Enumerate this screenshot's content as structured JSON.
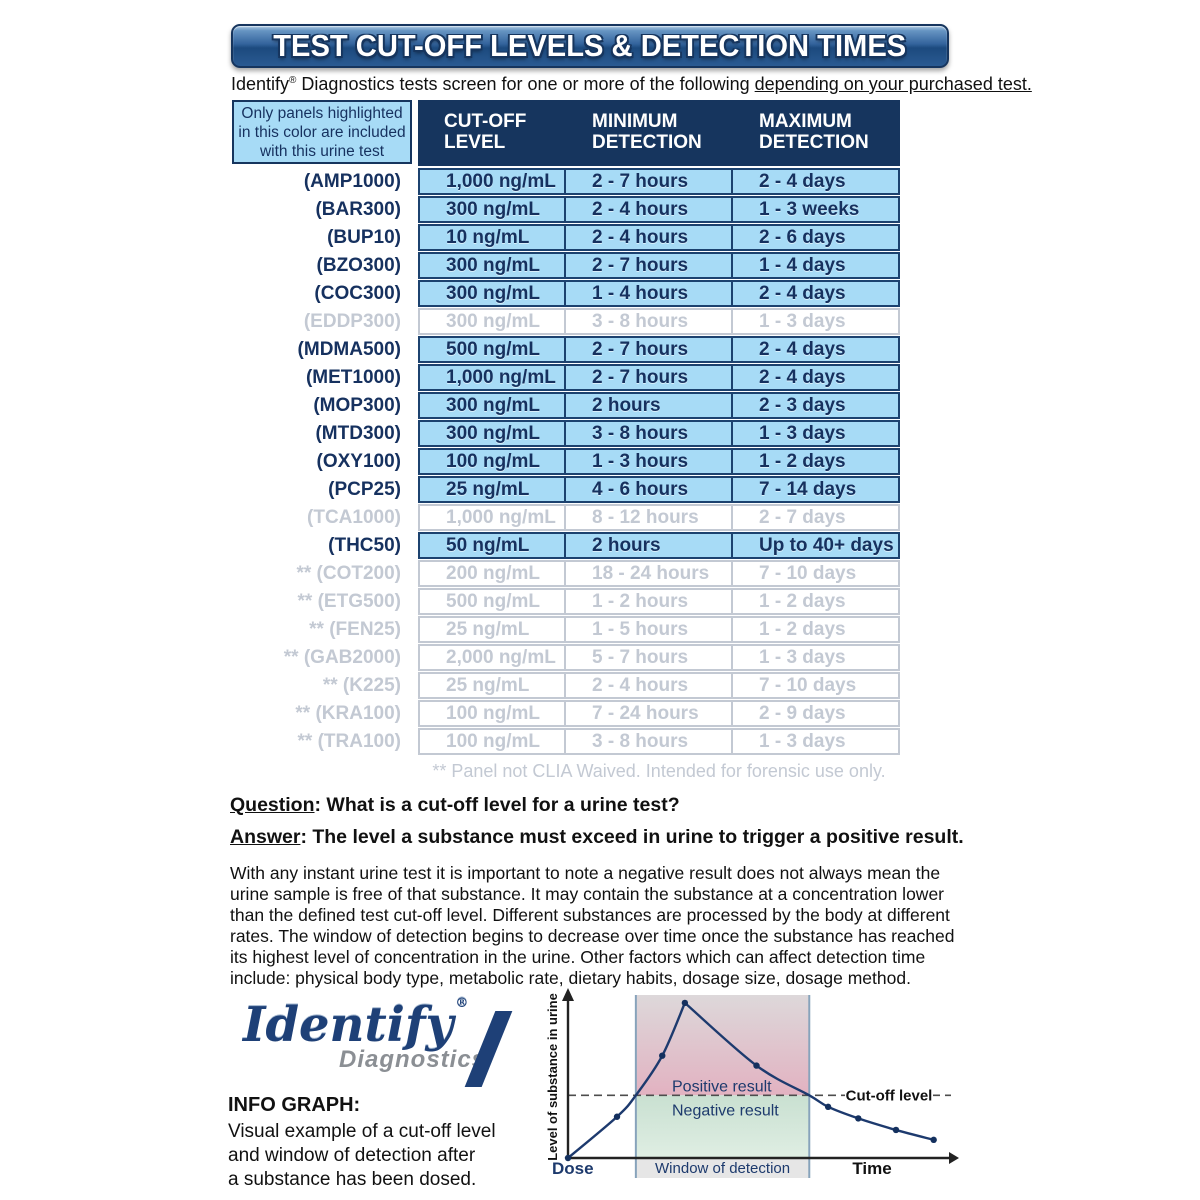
{
  "colors": {
    "navy": "#16355e",
    "row_border": "#1c426f",
    "highlight": "#a7dbf6",
    "faded": "#c3c9d3",
    "text_dark": "#111111",
    "cell_text": "#16315f",
    "logo_navy": "#1e4077",
    "logo_gray": "#8b8f94",
    "chart_curve": "#1d3a6e",
    "chart_label_navy": "#1d3a6d",
    "band_edge": "#87a3bb",
    "positive_top": "#ddd8da",
    "positive_bottom": "#e2b2c1",
    "negative_top": "#c9e0d1",
    "negative_bottom": "#dfeee3",
    "strip_gray": "#e6e6e6",
    "banner_g1": "#a9c6e0",
    "banner_g2": "#6694c2",
    "banner_g3": "#33639c",
    "banner_g4": "#1c4a7e",
    "banner_g5": "#2a5a92"
  },
  "banner": {
    "title": "TEST CUT-OFF LEVELS & DETECTION TIMES"
  },
  "subtitle": {
    "brand": "Identify",
    "reg": "®",
    "rest": " Diagnostics tests screen for one or more of the following ",
    "underlined": "depending on your purchased test."
  },
  "legend_box": {
    "line1": "Only panels highlighted",
    "line2": "in this color are included",
    "line3": "with this urine test"
  },
  "table": {
    "headers": [
      {
        "line1": "CUT-OFF",
        "line2": "LEVEL"
      },
      {
        "line1": "MINIMUM",
        "line2": "DETECTION"
      },
      {
        "line1": "MAXIMUM",
        "line2": "DETECTION"
      }
    ],
    "rows": [
      {
        "prefix": "",
        "panel": "(AMP1000)",
        "cutoff": "1,000 ng/mL",
        "min": "2 - 7 hours",
        "max": "2 - 4 days",
        "state": "active"
      },
      {
        "prefix": "",
        "panel": "(BAR300)",
        "cutoff": "300 ng/mL",
        "min": "2 - 4 hours",
        "max": "1 - 3 weeks",
        "state": "active"
      },
      {
        "prefix": "",
        "panel": "(BUP10)",
        "cutoff": "10 ng/mL",
        "min": "2 - 4 hours",
        "max": "2 - 6 days",
        "state": "active"
      },
      {
        "prefix": "",
        "panel": "(BZO300)",
        "cutoff": "300 ng/mL",
        "min": "2 - 7 hours",
        "max": "1 - 4 days",
        "state": "active"
      },
      {
        "prefix": "",
        "panel": "(COC300)",
        "cutoff": "300 ng/mL",
        "min": "1 - 4 hours",
        "max": "2 - 4 days",
        "state": "active"
      },
      {
        "prefix": "",
        "panel": "(EDDP300)",
        "cutoff": "300 ng/mL",
        "min": "3 - 8 hours",
        "max": "1 - 3 days",
        "state": "inactive"
      },
      {
        "prefix": "",
        "panel": "(MDMA500)",
        "cutoff": "500 ng/mL",
        "min": "2 - 7 hours",
        "max": "2 - 4 days",
        "state": "active"
      },
      {
        "prefix": "",
        "panel": "(MET1000)",
        "cutoff": "1,000 ng/mL",
        "min": "2 - 7 hours",
        "max": "2 - 4 days",
        "state": "active"
      },
      {
        "prefix": "",
        "panel": "(MOP300)",
        "cutoff": "300 ng/mL",
        "min": "2 hours",
        "max": "2 - 3 days",
        "state": "active"
      },
      {
        "prefix": "",
        "panel": "(MTD300)",
        "cutoff": "300 ng/mL",
        "min": "3 - 8 hours",
        "max": "1 - 3 days",
        "state": "active"
      },
      {
        "prefix": "",
        "panel": "(OXY100)",
        "cutoff": "100 ng/mL",
        "min": "1 - 3 hours",
        "max": "1 - 2 days",
        "state": "active"
      },
      {
        "prefix": "",
        "panel": "(PCP25)",
        "cutoff": "25 ng/mL",
        "min": "4 - 6 hours",
        "max": "7 - 14 days",
        "state": "active"
      },
      {
        "prefix": "",
        "panel": "(TCA1000)",
        "cutoff": "1,000 ng/mL",
        "min": "8 - 12 hours",
        "max": "2 - 7 days",
        "state": "inactive"
      },
      {
        "prefix": "",
        "panel": "(THC50)",
        "cutoff": "50 ng/mL",
        "min": "2 hours",
        "max": "Up to 40+ days",
        "state": "active"
      },
      {
        "prefix": "**",
        "panel": "(COT200)",
        "cutoff": "200 ng/mL",
        "min": "18 - 24 hours",
        "max": "7 - 10 days",
        "state": "inactive"
      },
      {
        "prefix": "**",
        "panel": "(ETG500)",
        "cutoff": "500 ng/mL",
        "min": "1 - 2 hours",
        "max": "1 - 2 days",
        "state": "inactive"
      },
      {
        "prefix": "**",
        "panel": "(FEN25)",
        "cutoff": "25 ng/mL",
        "min": "1 - 5 hours",
        "max": "1 - 2 days",
        "state": "inactive"
      },
      {
        "prefix": "**",
        "panel": "(GAB2000)",
        "cutoff": "2,000 ng/mL",
        "min": "5 - 7 hours",
        "max": "1 - 3 days",
        "state": "inactive"
      },
      {
        "prefix": "**",
        "panel": "(K225)",
        "cutoff": "25 ng/mL",
        "min": "2 - 4 hours",
        "max": "7 - 10 days",
        "state": "inactive"
      },
      {
        "prefix": "**",
        "panel": "(KRA100)",
        "cutoff": "100 ng/mL",
        "min": "7 - 24 hours",
        "max": "2 - 9 days",
        "state": "inactive"
      },
      {
        "prefix": "**",
        "panel": "(TRA100)",
        "cutoff": "100 ng/mL",
        "min": "3 - 8 hours",
        "max": "1 - 3 days",
        "state": "inactive"
      }
    ],
    "footnote": "** Panel not CLIA Waived. Intended for forensic use only."
  },
  "qa": {
    "q_label": "Question",
    "q_rest": ": What is a cut-off level for a urine test?",
    "a_label": "Answer",
    "a_rest": ": The level a substance must exceed in urine to trigger a positive result.",
    "paragraph": "With any instant urine test it is important to note a negative result does not always mean the urine sample is free of that substance. It may contain the substance at a concentration lower than the defined test cut-off level. Different substances are processed by the body at different rates. The window of detection begins to decrease over time once the substance has reached its highest level of concentration in the urine. Other factors which can affect detection time include: physical body type, metabolic rate, dietary habits, dosage size, dosage method."
  },
  "logo": {
    "brand": "Identify",
    "reg": "®",
    "subtext": "Diagnostics"
  },
  "info_graph": {
    "heading": "INFO GRAPH:",
    "line1": "Visual example of a cut-off level",
    "line2": "and window of detection after",
    "line3": "a substance has been dosed."
  },
  "chart_data": {
    "type": "line",
    "title": "",
    "xlabel": "Time",
    "ylabel": "Level of substance in urine",
    "origin_label": "Dose",
    "cutoff_label": "Cut-off level",
    "region_labels": {
      "positive": "Positive result",
      "negative": "Negative result",
      "window": "Window of detection"
    },
    "x_range": [
      0,
      100
    ],
    "y_range": [
      0,
      100
    ],
    "cutoff_y": 38,
    "window_x": [
      18,
      64
    ],
    "peak_index": 4,
    "grid": false,
    "legend_position": "none",
    "points": [
      {
        "x": 0,
        "y": 0,
        "dot": true
      },
      {
        "x": 13,
        "y": 25,
        "dot": true
      },
      {
        "x": 18,
        "y": 38,
        "dot": false
      },
      {
        "x": 25,
        "y": 62,
        "dot": true
      },
      {
        "x": 31,
        "y": 94,
        "dot": true
      },
      {
        "x": 50,
        "y": 56,
        "dot": true
      },
      {
        "x": 64,
        "y": 38,
        "dot": false
      },
      {
        "x": 69,
        "y": 31,
        "dot": true
      },
      {
        "x": 77,
        "y": 24,
        "dot": true
      },
      {
        "x": 87,
        "y": 17,
        "dot": true
      },
      {
        "x": 97,
        "y": 11,
        "dot": true
      }
    ]
  }
}
